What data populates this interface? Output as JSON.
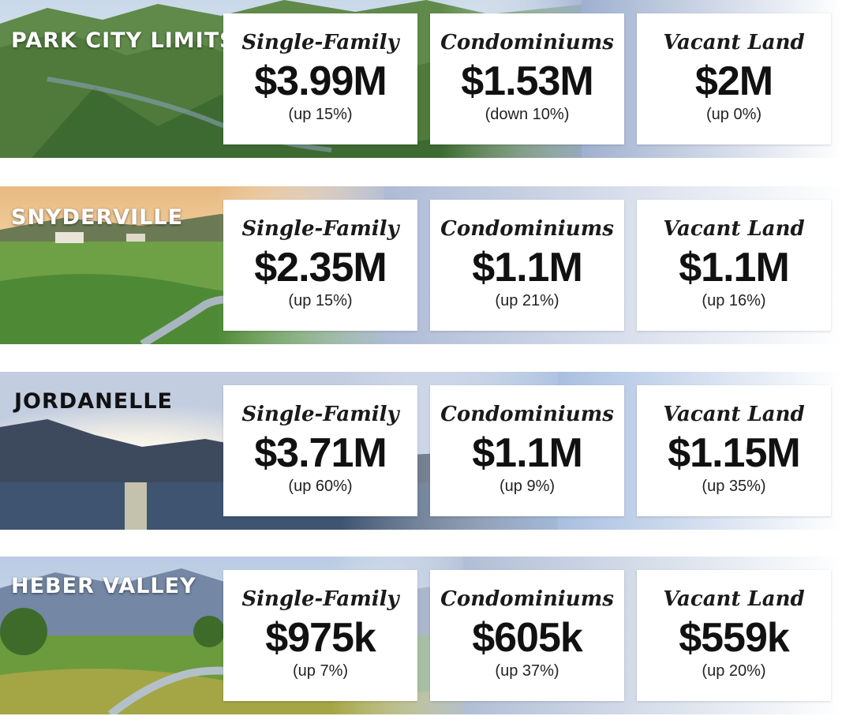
{
  "regions": [
    {
      "name": "PARK CITY LIMITS",
      "cards": [
        {
          "type": "Single-Family",
          "price": "$3.99M",
          "change": "(up 15%)"
        },
        {
          "type": "Condominiums",
          "price": "$1.53M",
          "change": "(down 10%)"
        },
        {
          "type": "Vacant Land",
          "price": "$2M",
          "change": "(up 0%)"
        }
      ]
    },
    {
      "name": "SNYDERVILLE",
      "cards": [
        {
          "type": "Single-Family",
          "price": "$2.35M",
          "change": "(up 15%)"
        },
        {
          "type": "Condominiums",
          "price": "$1.1M",
          "change": "(up 21%)"
        },
        {
          "type": "Vacant Land",
          "price": "$1.1M",
          "change": "(up 16%)"
        }
      ]
    },
    {
      "name": "JORDANELLE",
      "cards": [
        {
          "type": "Single-Family",
          "price": "$3.71M",
          "change": "(up 60%)"
        },
        {
          "type": "Condominiums",
          "price": "$1.1M",
          "change": "(up 9%)"
        },
        {
          "type": "Vacant Land",
          "price": "$1.15M",
          "change": "(up 35%)"
        }
      ]
    },
    {
      "name": "HEBER VALLEY",
      "cards": [
        {
          "type": "Single-Family",
          "price": "$975k",
          "change": "(up 7%)"
        },
        {
          "type": "Condominiums",
          "price": "$605k",
          "change": "(up 37%)"
        },
        {
          "type": "Vacant Land",
          "price": "$559k",
          "change": "(up 20%)"
        }
      ]
    }
  ],
  "colors": {
    "fade_blue": "#9fb0cf",
    "card_bg": "#ffffff",
    "text_dark": "#111111"
  }
}
